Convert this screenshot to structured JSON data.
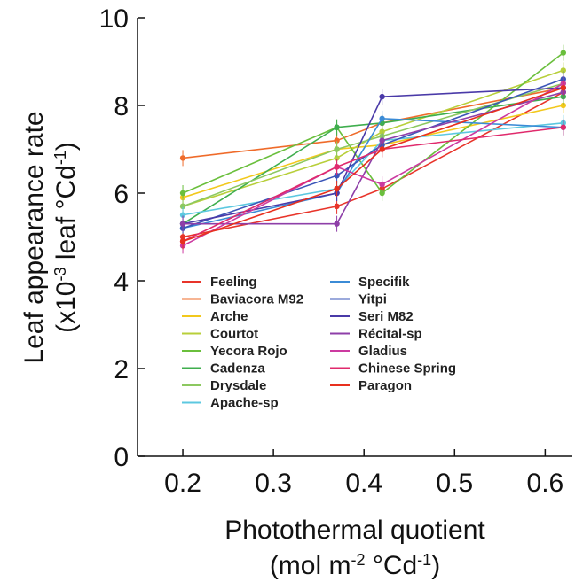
{
  "chart_data": {
    "type": "line",
    "xlabel": "Photothermal quotient",
    "xlabel_unit": "(mol m-2 °Cd-1)",
    "ylabel": "Leaf appearance rate",
    "ylabel_unit": "(x10-3 leaf °Cd-1)",
    "xlim": [
      0.15,
      0.63
    ],
    "ylim": [
      0,
      10
    ],
    "x_ticks": [
      "0.2",
      "0.3",
      "0.4",
      "0.5",
      "0.6"
    ],
    "y_ticks": [
      "0",
      "2",
      "4",
      "6",
      "8",
      "10"
    ],
    "x": [
      0.2,
      0.37,
      0.42,
      0.62
    ],
    "grid": false,
    "legend_position": "bottom-center",
    "series": [
      {
        "name": "Feeling",
        "color": "#e8342a",
        "values": [
          5.0,
          5.7,
          6.1,
          8.3
        ]
      },
      {
        "name": "Baviacora M92",
        "color": "#ef6b2a",
        "values": [
          6.8,
          7.2,
          7.6,
          8.4
        ]
      },
      {
        "name": "Arche",
        "color": "#f2c81c",
        "values": [
          5.9,
          7.0,
          7.1,
          8.0
        ]
      },
      {
        "name": "Courtot",
        "color": "#b8cf3a",
        "values": [
          5.7,
          6.8,
          7.4,
          8.8
        ]
      },
      {
        "name": "Yecora Rojo",
        "color": "#6abf3c",
        "values": [
          6.0,
          7.5,
          6.0,
          9.2
        ]
      },
      {
        "name": "Cadenza",
        "color": "#3fae4e",
        "values": [
          5.3,
          7.5,
          7.6,
          8.2
        ]
      },
      {
        "name": "Drysdale",
        "color": "#8cc860",
        "values": [
          5.7,
          7.0,
          7.3,
          8.5
        ]
      },
      {
        "name": "Apache-sp",
        "color": "#5cc8e0",
        "values": [
          5.5,
          6.1,
          7.2,
          7.6
        ]
      },
      {
        "name": "Specifik",
        "color": "#3b8bd6",
        "values": [
          5.2,
          6.0,
          7.7,
          7.5
        ]
      },
      {
        "name": "Yitpi",
        "color": "#3a55b8",
        "values": [
          5.2,
          6.4,
          7.1,
          8.6
        ]
      },
      {
        "name": "Seri M82",
        "color": "#4a3aa8",
        "values": [
          5.3,
          6.0,
          8.2,
          8.4
        ]
      },
      {
        "name": "Récital-sp",
        "color": "#8e3fa8",
        "values": [
          5.3,
          5.3,
          7.2,
          8.3
        ]
      },
      {
        "name": "Gladius",
        "color": "#cc3aa0",
        "values": [
          4.8,
          6.6,
          6.2,
          8.5
        ]
      },
      {
        "name": "Chinese Spring",
        "color": "#e02a6c",
        "values": [
          4.9,
          6.6,
          7.0,
          7.5
        ]
      },
      {
        "name": "Paragon",
        "color": "#e8301e",
        "values": [
          4.9,
          6.1,
          7.0,
          8.4
        ]
      }
    ]
  }
}
